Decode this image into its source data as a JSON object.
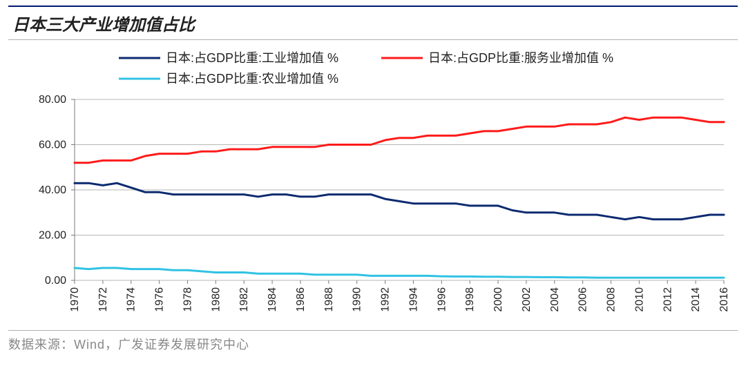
{
  "title": "日本三大产业增加值占比",
  "source_label": "数据来源：Wind，广发证券发展研究中心",
  "chart": {
    "type": "line",
    "background_color": "#ffffff",
    "grid_color": "#b6b6b6",
    "axis_color": "#7a7a7a",
    "ylim": [
      0,
      80
    ],
    "ytick_step": 20,
    "yticks": [
      "0.00",
      "20.00",
      "40.00",
      "60.00",
      "80.00"
    ],
    "xticks": [
      "1970",
      "1972",
      "1974",
      "1976",
      "1978",
      "1980",
      "1982",
      "1984",
      "1986",
      "1988",
      "1990",
      "1992",
      "1994",
      "1996",
      "1998",
      "2000",
      "2002",
      "2004",
      "2006",
      "2008",
      "2010",
      "2012",
      "2014",
      "2016"
    ],
    "x_years": [
      1970,
      1971,
      1972,
      1973,
      1974,
      1975,
      1976,
      1977,
      1978,
      1979,
      1980,
      1981,
      1982,
      1983,
      1984,
      1985,
      1986,
      1987,
      1988,
      1989,
      1990,
      1991,
      1992,
      1993,
      1994,
      1995,
      1996,
      1997,
      1998,
      1999,
      2000,
      2001,
      2002,
      2003,
      2004,
      2005,
      2006,
      2007,
      2008,
      2009,
      2010,
      2011,
      2012,
      2013,
      2014,
      2015,
      2016
    ],
    "line_width": 3,
    "legend": {
      "items": [
        {
          "label": "日本:占GDP比重:工业增加值 %",
          "color": "#0b2a6f"
        },
        {
          "label": "日本:占GDP比重:服务业增加值 %",
          "color": "#ff1a1a"
        },
        {
          "label": "日本:占GDP比重:农业增加值 %",
          "color": "#30c2e3"
        }
      ],
      "swatch_length": 60,
      "font_size": 18
    },
    "series": [
      {
        "name": "industry",
        "color": "#0b2a6f",
        "values": [
          43,
          43,
          42,
          43,
          41,
          39,
          39,
          38,
          38,
          38,
          38,
          38,
          38,
          37,
          38,
          38,
          37,
          37,
          38,
          38,
          38,
          38,
          36,
          35,
          34,
          34,
          34,
          34,
          33,
          33,
          33,
          31,
          30,
          30,
          30,
          29,
          29,
          29,
          28,
          27,
          28,
          27,
          27,
          27,
          28,
          29,
          29
        ]
      },
      {
        "name": "services",
        "color": "#ff1a1a",
        "values": [
          52,
          52,
          53,
          53,
          53,
          55,
          56,
          56,
          56,
          57,
          57,
          58,
          58,
          58,
          59,
          59,
          59,
          59,
          60,
          60,
          60,
          60,
          62,
          63,
          63,
          64,
          64,
          64,
          65,
          66,
          66,
          67,
          68,
          68,
          68,
          69,
          69,
          69,
          70,
          72,
          71,
          72,
          72,
          72,
          71,
          70,
          70
        ]
      },
      {
        "name": "agriculture",
        "color": "#30c2e3",
        "values": [
          5.5,
          5.0,
          5.5,
          5.5,
          5.0,
          5.0,
          5.0,
          4.5,
          4.5,
          4.0,
          3.5,
          3.5,
          3.5,
          3.0,
          3.0,
          3.0,
          3.0,
          2.5,
          2.5,
          2.5,
          2.5,
          2.0,
          2.0,
          2.0,
          2.0,
          2.0,
          1.8,
          1.7,
          1.7,
          1.6,
          1.6,
          1.5,
          1.5,
          1.4,
          1.4,
          1.3,
          1.3,
          1.2,
          1.2,
          1.2,
          1.2,
          1.2,
          1.2,
          1.2,
          1.2,
          1.2,
          1.2
        ]
      }
    ]
  }
}
